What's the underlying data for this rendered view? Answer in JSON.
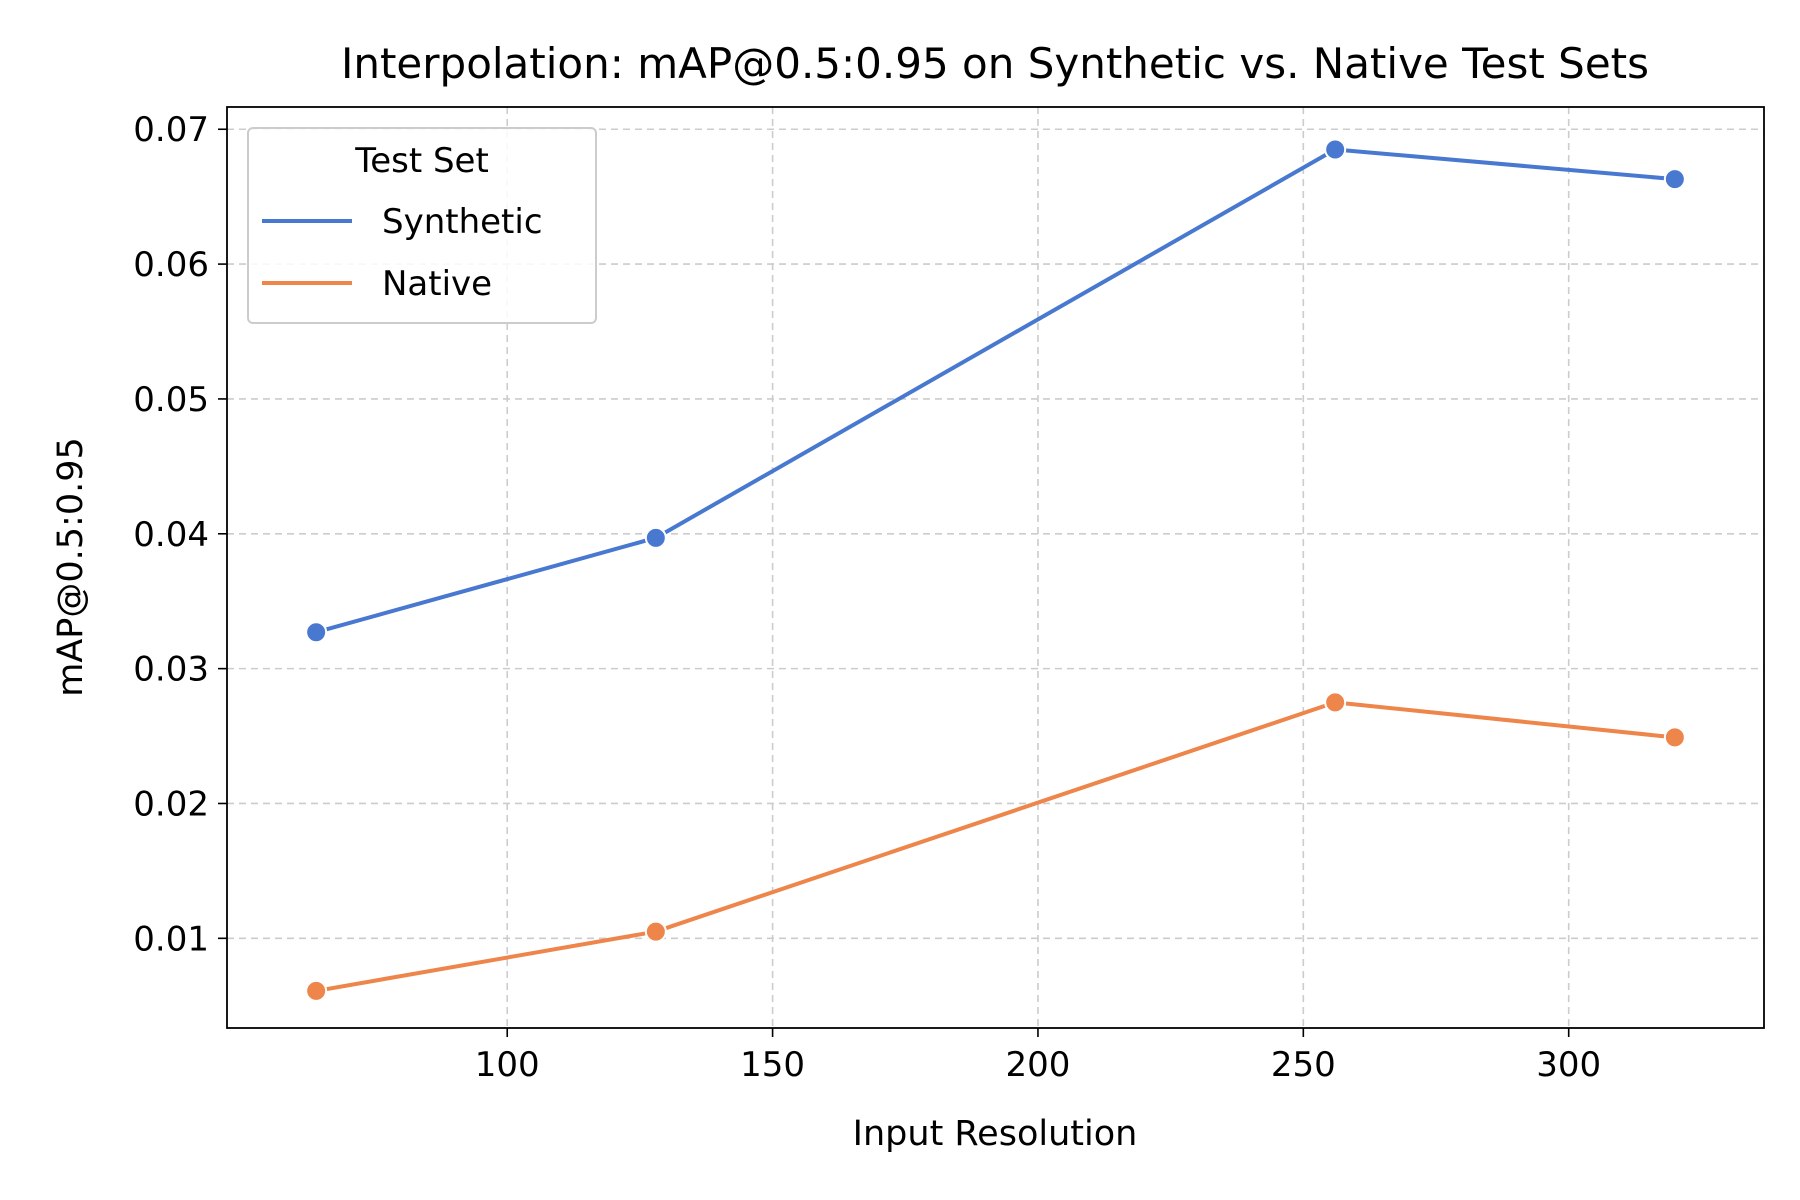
{
  "chart_data": {
    "type": "line",
    "title": "Interpolation: mAP@0.5:0.95 on Synthetic vs. Native Test Sets",
    "xlabel": "Input Resolution",
    "ylabel": "mAP@0.5:0.95",
    "x": [
      64,
      128,
      256,
      320
    ],
    "xlim": [
      47.2,
      336.8
    ],
    "ylim": [
      0.00335,
      0.07165
    ],
    "xticks": [
      100,
      150,
      200,
      250,
      300
    ],
    "xtick_labels": [
      "100",
      "150",
      "200",
      "250",
      "300"
    ],
    "yticks": [
      0.01,
      0.02,
      0.03,
      0.04,
      0.05,
      0.06,
      0.07
    ],
    "ytick_labels": [
      "0.01",
      "0.02",
      "0.03",
      "0.04",
      "0.05",
      "0.06",
      "0.07"
    ],
    "grid": true,
    "legend": {
      "title": "Test Set",
      "placement": "top-left"
    },
    "series": [
      {
        "name": "Synthetic",
        "color": "#4878d0",
        "values": [
          0.0327,
          0.0397,
          0.0685,
          0.0663
        ]
      },
      {
        "name": "Native",
        "color": "#ee854a",
        "values": [
          0.0061,
          0.0105,
          0.0275,
          0.0249
        ]
      }
    ]
  }
}
